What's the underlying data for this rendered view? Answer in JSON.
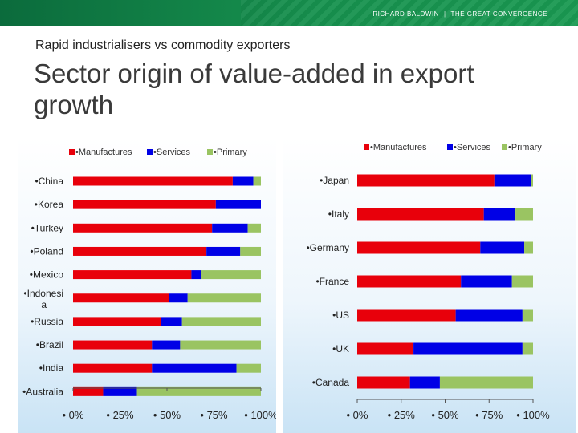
{
  "header": {
    "brand_name": "RICHARD BALDWIN",
    "brand_title": "THE GREAT CONVERGENCE"
  },
  "slide": {
    "subtitle": "Rapid industrialisers vs commodity exporters",
    "title": "Sector origin of value-added in export growth"
  },
  "colors": {
    "manufactures": "#e8000b",
    "services": "#0000e6",
    "primary": "#9ac462",
    "banner": "#148a48"
  },
  "chart_data": [
    {
      "type": "bar",
      "orientation": "horizontal",
      "stacked": "percent",
      "categories": [
        "China",
        "Korea",
        "Turkey",
        "Poland",
        "Mexico",
        "Indonesia",
        "Russia",
        "Brazil",
        "India",
        "Australia"
      ],
      "category_labels": [
        "•China",
        "•Korea",
        "•Turkey",
        "•Poland",
        "•Mexico",
        "•Indonesi\na",
        "•Russia",
        "•Brazil",
        "•India",
        "•Australia"
      ],
      "series": [
        {
          "name": "•Manufactures",
          "values": [
            85,
            76,
            74,
            71,
            63,
            51,
            47,
            42,
            42,
            16
          ]
        },
        {
          "name": "•Services",
          "values": [
            11,
            24,
            19,
            18,
            5,
            10,
            11,
            15,
            45,
            18
          ]
        },
        {
          "name": "•Primary",
          "values": [
            4,
            0,
            7,
            11,
            32,
            39,
            42,
            43,
            13,
            66
          ]
        }
      ],
      "xlim": [
        0,
        100
      ],
      "x_ticks": [
        "• 0%",
        "• 25%",
        "• 50%",
        "• 75%",
        "• 100%"
      ],
      "legend": "top"
    },
    {
      "type": "bar",
      "orientation": "horizontal",
      "stacked": "percent",
      "categories": [
        "Japan",
        "Italy",
        "Germany",
        "France",
        "US",
        "UK",
        "Canada"
      ],
      "category_labels": [
        "•Japan",
        "•Italy",
        "•Germany",
        "•France",
        "•US",
        "•UK",
        "•Canada"
      ],
      "series": [
        {
          "name": "•Manufactures",
          "values": [
            78,
            72,
            70,
            59,
            56,
            32,
            30
          ]
        },
        {
          "name": "•Services",
          "values": [
            21,
            18,
            25,
            29,
            38,
            62,
            17
          ]
        },
        {
          "name": "•Primary",
          "values": [
            1,
            10,
            5,
            12,
            6,
            6,
            53
          ]
        }
      ],
      "xlim": [
        0,
        100
      ],
      "x_ticks": [
        "• 0%",
        "• 25%",
        "• 50%",
        "• 75%",
        "• 100%"
      ],
      "legend": "top-right"
    }
  ]
}
